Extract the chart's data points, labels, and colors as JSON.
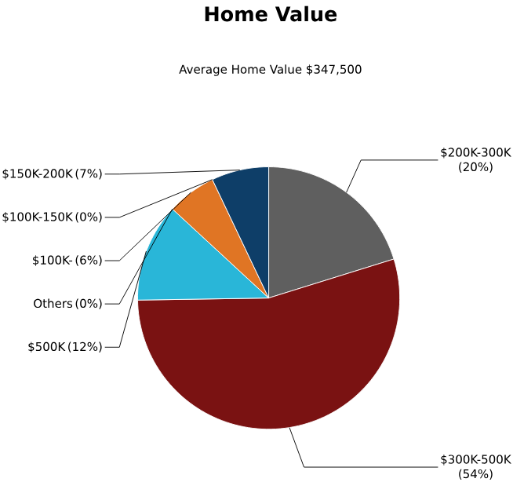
{
  "chart_data": {
    "type": "pie",
    "title": "Home Value",
    "subtitle": "Average Home Value  $347,500",
    "categories": [
      "$200K-300K",
      "$300K-500K",
      "$500K",
      "Others",
      "$100K-",
      "$100K-150K",
      "$150K-200K"
    ],
    "values": [
      20,
      54,
      12,
      0,
      6,
      0,
      7
    ],
    "value_labels": [
      "(20%)",
      "(54%)",
      "(12%)",
      "(0%)",
      "(6%)",
      "(0%)",
      "(7%)"
    ],
    "colors": [
      "#5f5f5f",
      "#7a1212",
      "#29b6d8",
      "#cccccc",
      "#e07524",
      "#cccccc",
      "#0e3e68"
    ]
  }
}
